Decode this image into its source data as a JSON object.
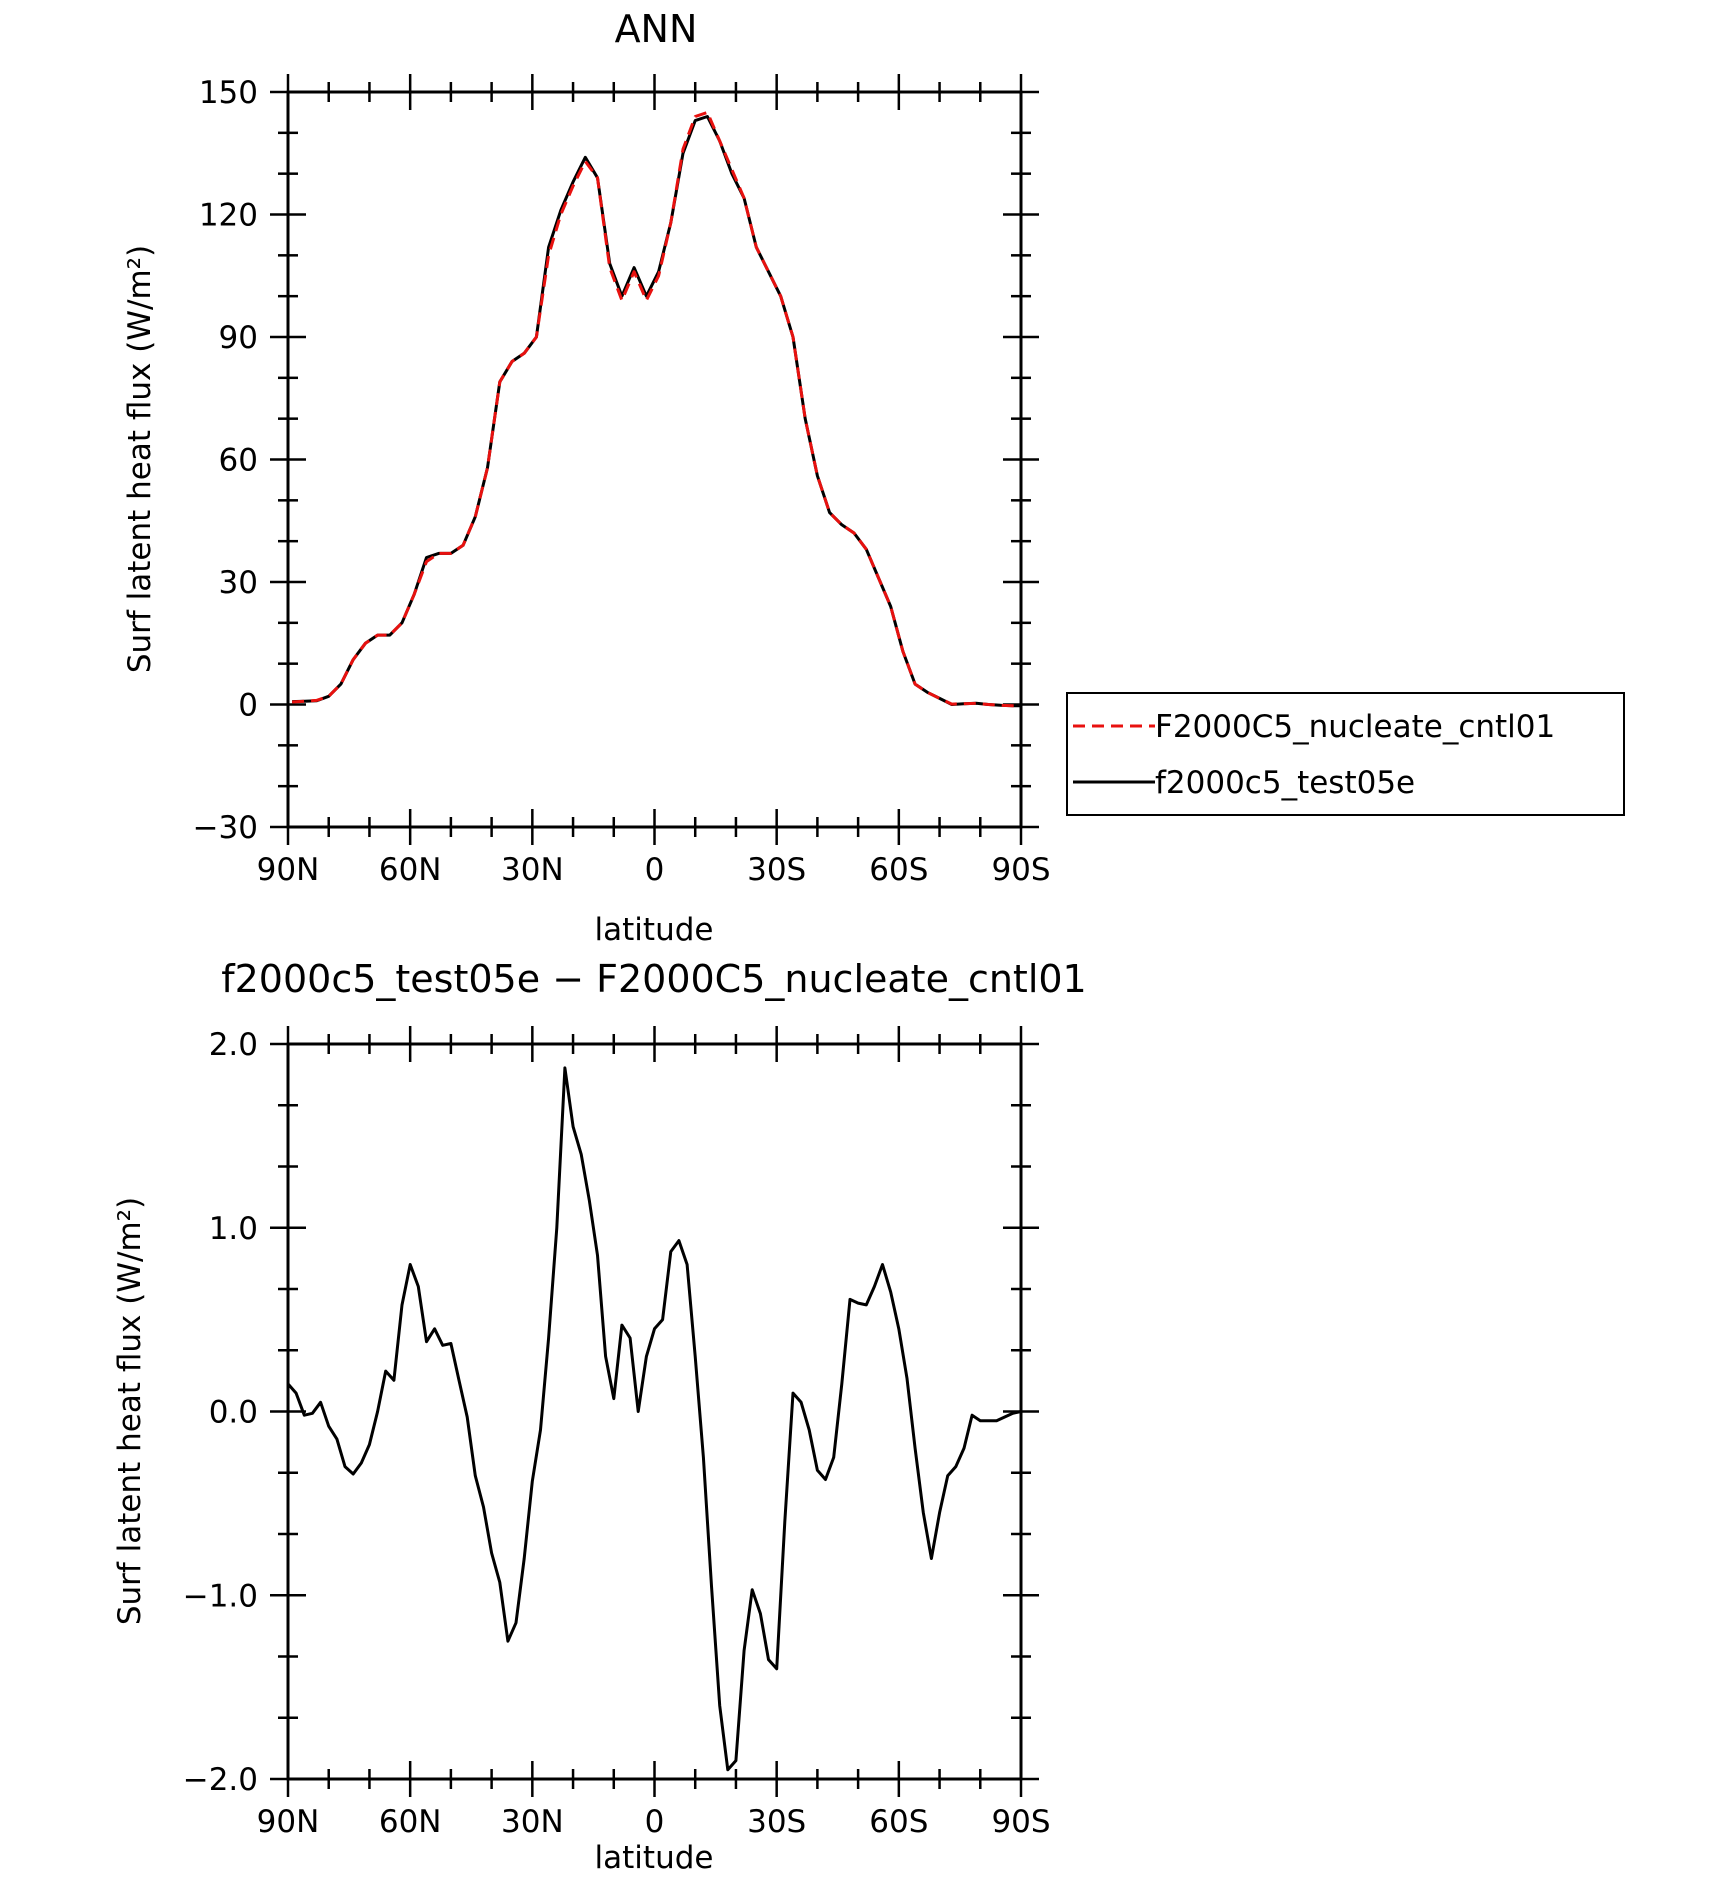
{
  "chart_data": [
    {
      "type": "line",
      "title": "ANN",
      "xlabel": "latitude",
      "ylabel": "Surf latent heat flux (W/m²)",
      "xlim": [
        90,
        -90
      ],
      "ylim": [
        -30,
        150
      ],
      "xticks": [
        90,
        60,
        30,
        0,
        -30,
        -60,
        -90
      ],
      "xtick_labels": [
        "90N",
        "60N",
        "30N",
        "0",
        "30S",
        "60S",
        "90S"
      ],
      "yticks": [
        -30,
        0,
        30,
        60,
        90,
        120,
        150
      ],
      "ytick_labels": [
        "−30",
        "0",
        "30",
        "60",
        "90",
        "120",
        "150"
      ],
      "x": [
        89,
        86,
        83,
        80,
        77,
        74,
        71,
        68,
        65,
        62,
        59,
        56,
        53,
        50,
        47,
        44,
        41,
        38,
        35,
        32,
        29,
        26,
        23,
        20,
        17,
        14,
        11,
        8,
        5,
        2,
        -1,
        -4,
        -7,
        -10,
        -13,
        -16,
        -19,
        -22,
        -25,
        -28,
        -31,
        -34,
        -37,
        -40,
        -43,
        -46,
        -49,
        -52,
        -55,
        -58,
        -61,
        -64,
        -67,
        -70,
        -73,
        -76,
        -79,
        -82,
        -85,
        -88,
        -90
      ],
      "series": [
        {
          "name": "F2000C5_nucleate_cntl01",
          "color": "#e8110f",
          "dash": "dashed",
          "values": [
            0.6,
            0.8,
            1.0,
            2.0,
            5.0,
            11.0,
            15.0,
            17.0,
            17.0,
            20.0,
            27.0,
            35.0,
            37.0,
            37.0,
            39.0,
            46.0,
            58.0,
            79.0,
            84.0,
            86.0,
            90.0,
            110.0,
            120.0,
            127.0,
            133.0,
            129.0,
            107.0,
            99.0,
            106.0,
            99.0,
            105.0,
            118.0,
            136.0,
            144.0,
            145.0,
            138.0,
            131.0,
            124.0,
            112.0,
            106.0,
            100.0,
            90.0,
            70.0,
            56.0,
            47.0,
            44.0,
            42.0,
            38.0,
            31.0,
            24.0,
            13.0,
            5.0,
            3.0,
            1.5,
            0.1,
            0.2,
            0.3,
            0.0,
            -0.2,
            -0.3,
            -0.3
          ]
        },
        {
          "name": "f2000c5_test05e",
          "color": "#000000",
          "dash": "solid",
          "values": [
            0.7,
            0.8,
            0.9,
            2.0,
            5.0,
            11.0,
            15.0,
            17.0,
            17.0,
            20.0,
            27.0,
            36.0,
            37.0,
            37.0,
            39.0,
            46.0,
            58.0,
            79.0,
            84.0,
            86.0,
            90.0,
            112.0,
            121.0,
            128.0,
            134.0,
            129.0,
            108.0,
            100.0,
            107.0,
            100.0,
            106.0,
            118.0,
            135.0,
            143.0,
            144.0,
            138.0,
            130.0,
            124.0,
            112.0,
            106.0,
            100.0,
            90.0,
            70.0,
            56.0,
            47.0,
            44.0,
            42.0,
            38.0,
            31.0,
            24.0,
            13.0,
            5.0,
            3.0,
            1.5,
            0.0,
            0.2,
            0.3,
            0.0,
            -0.2,
            -0.3,
            -0.3
          ]
        }
      ],
      "legend": "right"
    },
    {
      "type": "line",
      "title": "f2000c5_test05e − F2000C5_nucleate_cntl01",
      "xlabel": "latitude",
      "ylabel": "Surf latent heat flux (W/m²)",
      "xlim": [
        90,
        -90
      ],
      "ylim": [
        -2.0,
        2.0
      ],
      "xticks": [
        90,
        60,
        30,
        0,
        -30,
        -60,
        -90
      ],
      "xtick_labels": [
        "90N",
        "60N",
        "30N",
        "0",
        "30S",
        "60S",
        "90S"
      ],
      "yticks": [
        -2.0,
        -1.0,
        0.0,
        1.0,
        2.0
      ],
      "ytick_labels": [
        "−2.0",
        "−1.0",
        "0.0",
        "1.0",
        "2.0"
      ],
      "x": [
        90,
        88,
        86,
        84,
        82,
        80,
        78,
        76,
        74,
        72,
        70,
        68,
        66,
        64,
        62,
        60,
        58,
        56,
        54,
        52,
        50,
        48,
        46,
        44,
        42,
        40,
        38,
        36,
        34,
        32,
        30,
        28,
        26,
        24,
        22,
        20,
        18,
        16,
        14,
        12,
        10,
        8,
        6,
        4,
        2,
        0,
        -2,
        -4,
        -6,
        -8,
        -10,
        -12,
        -14,
        -16,
        -18,
        -20,
        -22,
        -24,
        -26,
        -28,
        -30,
        -32,
        -34,
        -36,
        -38,
        -40,
        -42,
        -44,
        -46,
        -48,
        -50,
        -52,
        -54,
        -56,
        -58,
        -60,
        -62,
        -64,
        -66,
        -68,
        -70,
        -72,
        -74,
        -76,
        -78,
        -80,
        -82,
        -84,
        -86,
        -88,
        -90
      ],
      "series": [
        {
          "name": "",
          "color": "#000000",
          "dash": "solid",
          "values": [
            0.15,
            0.1,
            -0.02,
            -0.01,
            0.05,
            -0.08,
            -0.15,
            -0.3,
            -0.34,
            -0.28,
            -0.18,
            0.0,
            0.22,
            0.17,
            0.58,
            0.8,
            0.68,
            0.38,
            0.45,
            0.36,
            0.37,
            0.17,
            -0.03,
            -0.35,
            -0.52,
            -0.77,
            -0.93,
            -1.25,
            -1.15,
            -0.8,
            -0.38,
            -0.1,
            0.4,
            1.0,
            1.87,
            1.55,
            1.4,
            1.15,
            0.85,
            0.3,
            0.07,
            0.47,
            0.4,
            0.0,
            0.3,
            0.45,
            0.5,
            0.87,
            0.93,
            0.8,
            0.3,
            -0.25,
            -0.95,
            -1.6,
            -1.95,
            -1.9,
            -1.3,
            -0.97,
            -1.1,
            -1.35,
            -1.4,
            -0.6,
            0.1,
            0.05,
            -0.1,
            -0.32,
            -0.37,
            -0.25,
            0.15,
            0.61,
            0.59,
            0.58,
            0.68,
            0.8,
            0.65,
            0.45,
            0.18,
            -0.2,
            -0.55,
            -0.8,
            -0.55,
            -0.35,
            -0.3,
            -0.2,
            -0.02,
            -0.05,
            -0.05,
            -0.05,
            -0.03,
            -0.01,
            0.0
          ]
        }
      ]
    }
  ]
}
